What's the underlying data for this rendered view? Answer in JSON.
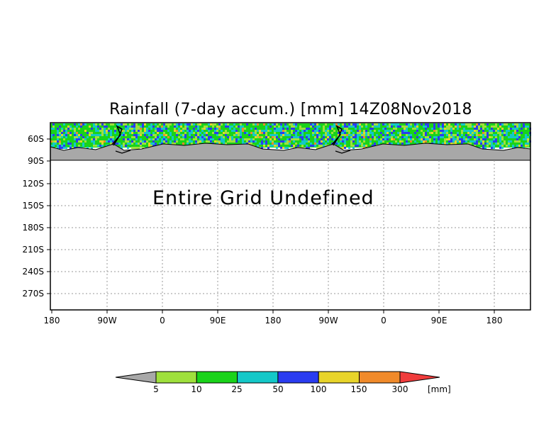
{
  "title": "Rainfall (7-day accum.) [mm] 14Z08Nov2018",
  "message": "Entire Grid Undefined",
  "lat_labels": [
    "60S",
    "90S",
    "120S",
    "150S",
    "180S",
    "210S",
    "240S",
    "270S"
  ],
  "lon_labels": [
    "180",
    "90W",
    "0",
    "90E",
    "180",
    "90W",
    "0",
    "90E",
    "180"
  ],
  "colorbar": {
    "labels": [
      "5",
      "10",
      "25",
      "50",
      "100",
      "150",
      "300"
    ],
    "unit": "[mm]",
    "colors": [
      "#9fe03c",
      "#1ad31a",
      "#14c8c8",
      "#2a3cf0",
      "#e8d42a",
      "#f08a2a",
      "#f03c3c"
    ],
    "under_color": "#a8a8a8"
  },
  "colors": {
    "land_mask": "#a8a8a8",
    "coastline": "#000000",
    "grid": "#9a9a9a"
  }
}
